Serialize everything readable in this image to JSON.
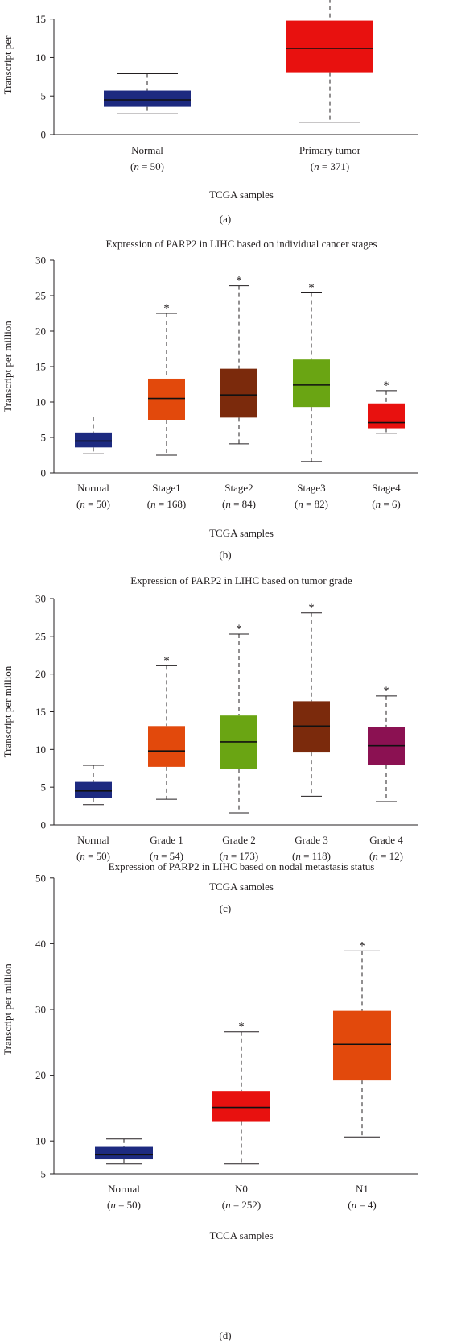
{
  "chart_data": [
    {
      "type": "box",
      "panel_label": "(a)",
      "title": "",
      "xlabel": "TCGA samples",
      "ylabel": "Transcript per",
      "ylim": [
        0,
        18
      ],
      "yticks": [
        0,
        5,
        10,
        15
      ],
      "categories": [
        {
          "name": "Normal",
          "n": "n = 50",
          "min": 2.7,
          "q1": 3.6,
          "median": 4.5,
          "q3": 5.7,
          "max": 7.9,
          "color": "#1d2a80",
          "star": false
        },
        {
          "name": "Primary tumor",
          "n": "n = 371",
          "min": 1.6,
          "q1": 8.1,
          "median": 11.2,
          "q3": 14.8,
          "max": 19.5,
          "color": "#e8110f",
          "star": false
        }
      ]
    },
    {
      "type": "box",
      "panel_label": "(b)",
      "title": "Expression of PARP2 in LIHC based on individual cancer stages",
      "xlabel": "TCGA samples",
      "ylabel": "Transcript per million",
      "ylim": [
        0,
        30
      ],
      "yticks": [
        0,
        5,
        10,
        15,
        20,
        25,
        30
      ],
      "categories": [
        {
          "name": "Normal",
          "n": "n = 50",
          "min": 2.7,
          "q1": 3.6,
          "median": 4.5,
          "q3": 5.7,
          "max": 7.9,
          "color": "#1d2a80",
          "star": false
        },
        {
          "name": "Stage1",
          "n": "n = 168",
          "min": 2.5,
          "q1": 7.5,
          "median": 10.5,
          "q3": 13.3,
          "max": 22.5,
          "color": "#e2490c",
          "star": true
        },
        {
          "name": "Stage2",
          "n": "n = 84",
          "min": 4.1,
          "q1": 7.8,
          "median": 11.0,
          "q3": 14.7,
          "max": 26.4,
          "color": "#7b2a0c",
          "star": true
        },
        {
          "name": "Stage3",
          "n": "n = 82",
          "min": 1.6,
          "q1": 9.3,
          "median": 12.4,
          "q3": 16.0,
          "max": 25.4,
          "color": "#6aa513",
          "star": true
        },
        {
          "name": "Stage4",
          "n": "n = 6",
          "min": 5.6,
          "q1": 6.3,
          "median": 7.1,
          "q3": 9.8,
          "max": 11.6,
          "color": "#e8110f",
          "star": true
        }
      ]
    },
    {
      "type": "box",
      "panel_label": "(c)",
      "title": "Expression of PARP2 in LIHC based on tumor grade",
      "xlabel": "TCGA samoles",
      "ylabel": "Transcript per million",
      "ylim": [
        0,
        30
      ],
      "yticks": [
        0,
        5,
        10,
        15,
        20,
        25,
        30
      ],
      "categories": [
        {
          "name": "Normal",
          "n": "n = 50",
          "min": 2.7,
          "q1": 3.6,
          "median": 4.5,
          "q3": 5.7,
          "max": 7.9,
          "color": "#1d2a80",
          "star": false
        },
        {
          "name": "Grade 1",
          "n": "n = 54",
          "min": 3.4,
          "q1": 7.7,
          "median": 9.8,
          "q3": 13.1,
          "max": 21.1,
          "color": "#e2490c",
          "star": true
        },
        {
          "name": "Grade 2",
          "n": "n = 173",
          "min": 1.6,
          "q1": 7.4,
          "median": 11.0,
          "q3": 14.5,
          "max": 25.3,
          "color": "#6aa513",
          "star": true
        },
        {
          "name": "Grade 3",
          "n": "n = 118",
          "min": 3.8,
          "q1": 9.6,
          "median": 13.1,
          "q3": 16.4,
          "max": 28.1,
          "color": "#7b2a0c",
          "star": true
        },
        {
          "name": "Grade 4",
          "n": "n = 12",
          "min": 3.1,
          "q1": 7.9,
          "median": 10.5,
          "q3": 13.0,
          "max": 17.1,
          "color": "#8b1152",
          "star": true
        }
      ]
    },
    {
      "type": "box",
      "panel_label": "(d)",
      "title": "Expression of PARP2 in LIHC based on nodal metastasis status",
      "xlabel": "TCCA samples",
      "ylabel": "Transcript per million",
      "ylim": [
        5,
        55
      ],
      "yticks": [
        5,
        10,
        20,
        30,
        40,
        50
      ],
      "categories": [
        {
          "name": "Normal",
          "n": "n = 50",
          "min": 6.5,
          "q1": 7.2,
          "median": 7.9,
          "q3": 9.1,
          "max": 10.3,
          "color": "#1d2a80",
          "star": false
        },
        {
          "name": "N0",
          "n": "n = 252",
          "min": 6.5,
          "q1": 12.9,
          "median": 15.1,
          "q3": 17.6,
          "max": 26.6,
          "color": "#e8110f",
          "star": true
        },
        {
          "name": "N1",
          "n": "n = 4",
          "min": 10.6,
          "q1": 19.2,
          "median": 24.7,
          "q3": 29.8,
          "max": 38.9,
          "color": "#e2490c",
          "star": true
        }
      ]
    }
  ]
}
